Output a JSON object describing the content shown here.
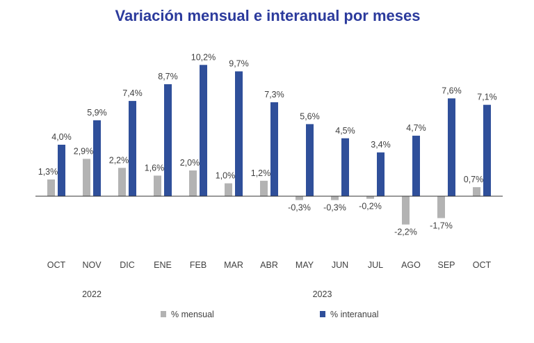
{
  "chart_data": {
    "type": "bar",
    "title": "Variación mensual e interanual por meses",
    "categories": [
      "OCT",
      "NOV",
      "DIC",
      "ENE",
      "FEB",
      "MAR",
      "ABR",
      "MAY",
      "JUN",
      "JUL",
      "AGO",
      "SEP",
      "OCT"
    ],
    "years": [
      {
        "label": "2022",
        "start": 0,
        "end": 2
      },
      {
        "label": "2023",
        "start": 3,
        "end": 12
      }
    ],
    "series": [
      {
        "name": "% mensual",
        "color": "#b3b3b3",
        "values": [
          1.3,
          2.9,
          2.2,
          1.6,
          2.0,
          1.0,
          1.2,
          -0.3,
          -0.3,
          -0.2,
          -2.2,
          -1.7,
          0.7
        ],
        "labels": [
          "1,3%",
          "2,9%",
          "2,2%",
          "1,6%",
          "2,0%",
          "1,0%",
          "1,2%",
          "-0,3%",
          "-0,3%",
          "-0,2%",
          "-2,2%",
          "-1,7%",
          "0,7%"
        ]
      },
      {
        "name": "% interanual",
        "color": "#2f4f9a",
        "values": [
          4.0,
          5.9,
          7.4,
          8.7,
          10.2,
          9.7,
          7.3,
          5.6,
          4.5,
          3.4,
          4.7,
          7.6,
          7.1
        ],
        "labels": [
          "4,0%",
          "5,9%",
          "7,4%",
          "8,7%",
          "10,2%",
          "9,7%",
          "7,3%",
          "5,6%",
          "4,5%",
          "3,4%",
          "4,7%",
          "7,6%",
          "7,1%"
        ]
      }
    ],
    "ylim": [
      -4,
      11
    ],
    "grid": false,
    "legend": "bottom"
  }
}
